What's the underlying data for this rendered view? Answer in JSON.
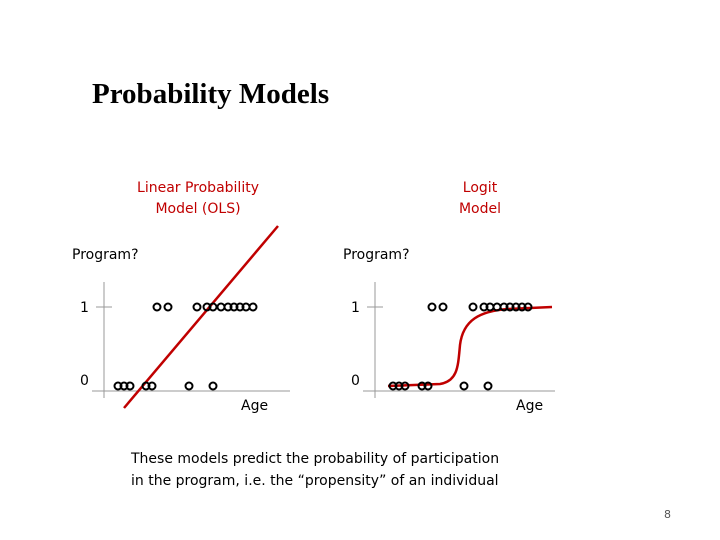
{
  "slide": {
    "title": "Probability Models",
    "page_number": "8",
    "caption_line1": "These models predict the probability of participation",
    "caption_line2": "in the program, i.e. the “propensity” of an individual"
  },
  "colors": {
    "accent": "#c00000",
    "axis": "#999999",
    "points": "#000000"
  },
  "left_plot": {
    "title_line1": "Linear Probability",
    "title_line2": "Model (OLS)",
    "y_label": "Program?",
    "x_label": "Age",
    "tick_1": "1",
    "tick_0": "0",
    "fit": "linear"
  },
  "right_plot": {
    "title_line1": "Logit",
    "title_line2": "Model",
    "y_label": "Program?",
    "x_label": "Age",
    "tick_1": "1",
    "tick_0": "0",
    "fit": "logistic"
  }
}
